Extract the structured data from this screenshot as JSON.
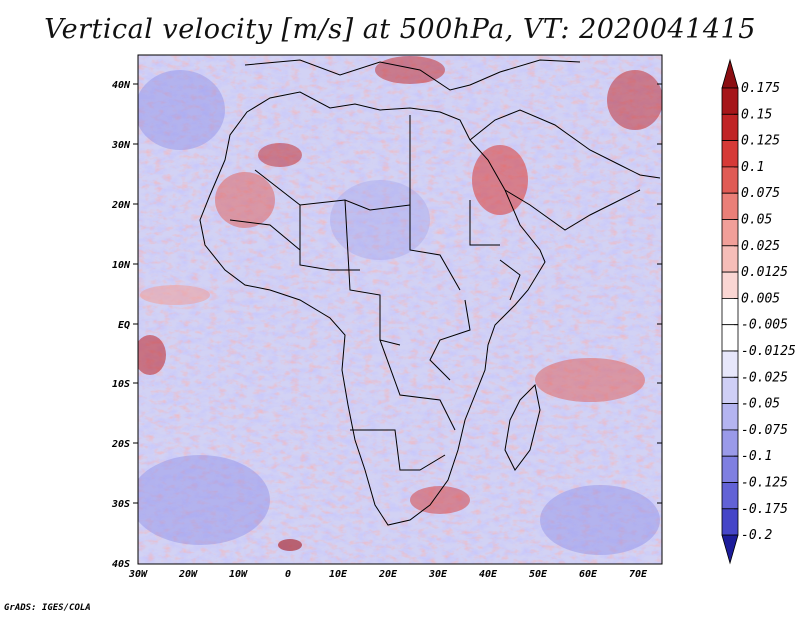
{
  "title": "Vertical velocity [m/s] at 500hPa, VT: 2020041415",
  "credit": "GrADS: IGES/COLA",
  "map": {
    "lat_labels": [
      "40N",
      "30N",
      "20N",
      "10N",
      "EQ",
      "10S",
      "20S",
      "30S",
      "40S"
    ],
    "lon_labels": [
      "30W",
      "20W",
      "10W",
      "0",
      "10E",
      "20E",
      "30E",
      "40E",
      "50E",
      "60E",
      "70E"
    ],
    "lat_range": [
      -40,
      45
    ],
    "lon_range": [
      -30,
      75
    ],
    "field": "Vertical velocity",
    "level": "500hPa",
    "valid_time": "2020041415"
  },
  "colorbar": {
    "levels": [
      {
        "label": "0.175",
        "color": "#a6161a"
      },
      {
        "label": "0.15",
        "color": "#c02426"
      },
      {
        "label": "0.125",
        "color": "#d63a37"
      },
      {
        "label": "0.1",
        "color": "#e05b55"
      },
      {
        "label": "0.075",
        "color": "#ea7f78"
      },
      {
        "label": "0.05",
        "color": "#f19f99"
      },
      {
        "label": "0.025",
        "color": "#f6bdb8"
      },
      {
        "label": "0.0125",
        "color": "#fad6d3"
      },
      {
        "label": "0.005",
        "color": "#fdeceb"
      },
      {
        "label": "-0.005",
        "color": "#ffffff"
      },
      {
        "label": "-0.0125",
        "color": "#e7e7fb"
      },
      {
        "label": "-0.025",
        "color": "#cfcff6"
      },
      {
        "label": "-0.05",
        "color": "#b4b4f0"
      },
      {
        "label": "-0.075",
        "color": "#9a9ae9"
      },
      {
        "label": "-0.1",
        "color": "#7f7fe1"
      },
      {
        "label": "-0.125",
        "color": "#6262d6"
      },
      {
        "label": "-0.175",
        "color": "#4545c8"
      },
      {
        "label": "-0.2",
        "color": "#2c2cb4"
      }
    ],
    "top_arrow_color": "#8b0e12",
    "bottom_arrow_color": "#1c1c9a"
  }
}
